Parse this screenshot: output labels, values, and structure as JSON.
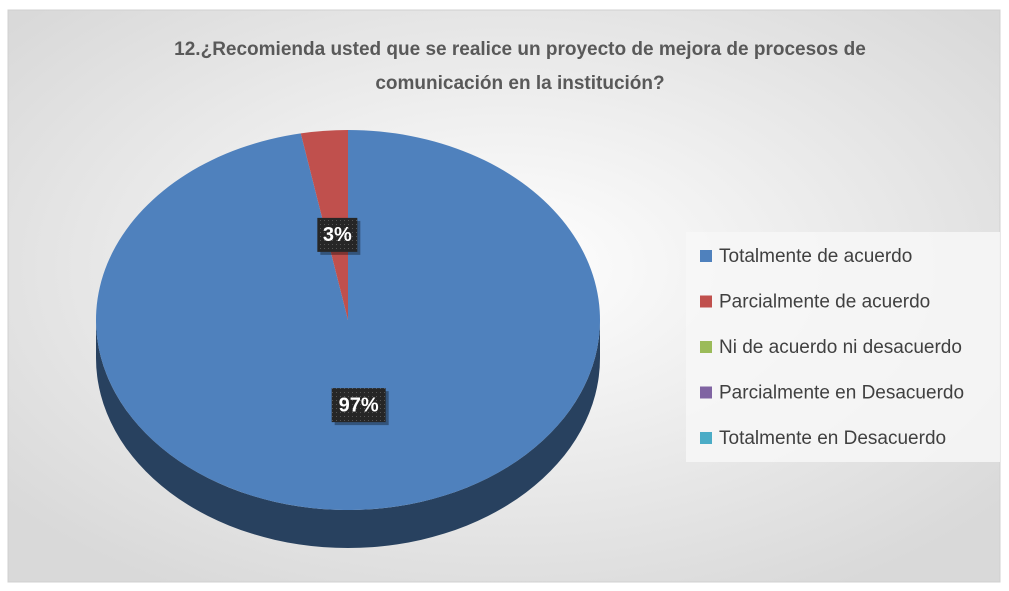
{
  "chart_data": {
    "type": "pie",
    "title": [
      "12.¿Recomienda usted que se realice un proyecto de mejora de procesos de",
      "comunicación en la institución?"
    ],
    "categories": [
      "Totalmente de acuerdo",
      "Parcialmente de acuerdo",
      "Ni de acuerdo ni desacuerdo",
      "Parcialmente en Desacuerdo",
      "Totalmente en Desacuerdo"
    ],
    "values": [
      97,
      3,
      0,
      0,
      0
    ],
    "value_labels": [
      "97%",
      "3%",
      null,
      null,
      null
    ],
    "colors": [
      "#4f81bd",
      "#c0504d",
      "#9bbb59",
      "#8064a2",
      "#4bacc6"
    ],
    "legend": "right"
  }
}
